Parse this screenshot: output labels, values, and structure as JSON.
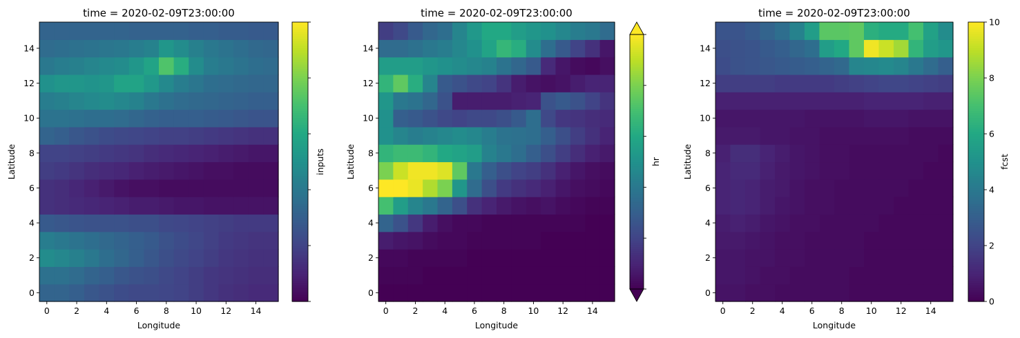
{
  "chart_data": [
    {
      "type": "heatmap",
      "title": "time = 2020-02-09T23:00:00",
      "xlabel": "Longitude",
      "ylabel": "Latitude",
      "colorbar_label": "inputs",
      "colormap": "viridis",
      "xlim": [
        -0.5,
        15.5
      ],
      "ylim": [
        -0.5,
        15.5
      ],
      "x_ticks": [
        0,
        2,
        4,
        6,
        8,
        10,
        12,
        14
      ],
      "y_ticks": [
        0,
        2,
        4,
        6,
        8,
        10,
        12,
        14
      ],
      "colorbar_range": [
        0,
        1
      ],
      "colorbar_ticks": [
        0,
        0.2,
        0.4,
        0.6,
        0.8,
        1.0
      ],
      "colorbar_tick_labels": [
        "",
        "",
        "",
        "",
        "",
        ""
      ],
      "colorbar_extend": "neither",
      "values": [
        [
          0.32,
          0.32,
          0.3,
          0.27,
          0.25,
          0.23,
          0.22,
          0.22,
          0.21,
          0.2,
          0.18,
          0.16,
          0.14,
          0.13,
          0.12,
          0.12
        ],
        [
          0.37,
          0.37,
          0.35,
          0.32,
          0.3,
          0.27,
          0.25,
          0.24,
          0.22,
          0.2,
          0.18,
          0.16,
          0.15,
          0.14,
          0.13,
          0.13
        ],
        [
          0.48,
          0.46,
          0.43,
          0.4,
          0.36,
          0.33,
          0.3,
          0.27,
          0.24,
          0.22,
          0.2,
          0.18,
          0.16,
          0.15,
          0.14,
          0.14
        ],
        [
          0.42,
          0.4,
          0.38,
          0.36,
          0.34,
          0.32,
          0.3,
          0.28,
          0.25,
          0.23,
          0.21,
          0.19,
          0.17,
          0.16,
          0.15,
          0.15
        ],
        [
          0.28,
          0.27,
          0.26,
          0.25,
          0.25,
          0.25,
          0.24,
          0.24,
          0.22,
          0.21,
          0.2,
          0.19,
          0.18,
          0.17,
          0.17,
          0.17
        ],
        [
          0.14,
          0.13,
          0.12,
          0.11,
          0.1,
          0.09,
          0.08,
          0.08,
          0.07,
          0.06,
          0.06,
          0.05,
          0.05,
          0.05,
          0.05,
          0.05
        ],
        [
          0.14,
          0.13,
          0.11,
          0.09,
          0.07,
          0.05,
          0.04,
          0.04,
          0.03,
          0.03,
          0.03,
          0.03,
          0.03,
          0.03,
          0.03,
          0.03
        ],
        [
          0.18,
          0.17,
          0.15,
          0.13,
          0.12,
          0.11,
          0.09,
          0.08,
          0.07,
          0.06,
          0.05,
          0.04,
          0.04,
          0.03,
          0.03,
          0.03
        ],
        [
          0.2,
          0.2,
          0.19,
          0.18,
          0.17,
          0.16,
          0.15,
          0.13,
          0.12,
          0.11,
          0.1,
          0.09,
          0.08,
          0.07,
          0.06,
          0.06
        ],
        [
          0.32,
          0.3,
          0.27,
          0.25,
          0.23,
          0.22,
          0.21,
          0.2,
          0.19,
          0.19,
          0.18,
          0.17,
          0.16,
          0.15,
          0.14,
          0.14
        ],
        [
          0.38,
          0.38,
          0.37,
          0.36,
          0.36,
          0.35,
          0.33,
          0.31,
          0.3,
          0.3,
          0.3,
          0.29,
          0.28,
          0.27,
          0.26,
          0.26
        ],
        [
          0.42,
          0.43,
          0.45,
          0.47,
          0.48,
          0.46,
          0.44,
          0.4,
          0.37,
          0.35,
          0.34,
          0.33,
          0.32,
          0.31,
          0.3,
          0.3
        ],
        [
          0.5,
          0.52,
          0.52,
          0.51,
          0.52,
          0.58,
          0.58,
          0.53,
          0.47,
          0.42,
          0.39,
          0.36,
          0.35,
          0.34,
          0.33,
          0.33
        ],
        [
          0.4,
          0.42,
          0.43,
          0.45,
          0.47,
          0.48,
          0.52,
          0.58,
          0.72,
          0.62,
          0.48,
          0.42,
          0.4,
          0.38,
          0.36,
          0.35
        ],
        [
          0.35,
          0.36,
          0.37,
          0.38,
          0.39,
          0.4,
          0.42,
          0.44,
          0.52,
          0.48,
          0.43,
          0.4,
          0.38,
          0.36,
          0.34,
          0.33
        ],
        [
          0.32,
          0.32,
          0.32,
          0.32,
          0.32,
          0.32,
          0.31,
          0.31,
          0.31,
          0.31,
          0.3,
          0.3,
          0.29,
          0.29,
          0.28,
          0.28
        ]
      ]
    },
    {
      "type": "heatmap",
      "title": "time = 2020-02-09T23:00:00",
      "xlabel": "Longitude",
      "ylabel": "Latitude",
      "colorbar_label": "hr",
      "colormap": "viridis",
      "xlim": [
        -0.5,
        15.5
      ],
      "ylim": [
        -0.5,
        15.5
      ],
      "x_ticks": [
        0,
        2,
        4,
        6,
        8,
        10,
        12,
        14
      ],
      "y_ticks": [
        0,
        2,
        4,
        6,
        8,
        10,
        12,
        14
      ],
      "colorbar_range": [
        0,
        1
      ],
      "colorbar_ticks": [
        0,
        0.2,
        0.4,
        0.6,
        0.8,
        1.0
      ],
      "colorbar_tick_labels": [
        "",
        "",
        "",
        "",
        "",
        ""
      ],
      "colorbar_extend": "both",
      "values": [
        [
          0.0,
          0.0,
          0.0,
          0.0,
          0.0,
          0.0,
          0.0,
          0.0,
          0.0,
          0.0,
          0.0,
          0.0,
          0.0,
          0.0,
          0.0,
          0.0
        ],
        [
          0.01,
          0.01,
          0.01,
          0.0,
          0.0,
          0.0,
          0.0,
          0.0,
          0.0,
          0.0,
          0.0,
          0.0,
          0.0,
          0.0,
          0.0,
          0.0
        ],
        [
          0.02,
          0.02,
          0.01,
          0.01,
          0.01,
          0.01,
          0.0,
          0.0,
          0.0,
          0.0,
          0.0,
          0.0,
          0.0,
          0.0,
          0.0,
          0.0
        ],
        [
          0.08,
          0.06,
          0.05,
          0.03,
          0.02,
          0.02,
          0.01,
          0.01,
          0.01,
          0.01,
          0.01,
          0.0,
          0.0,
          0.0,
          0.0,
          0.0
        ],
        [
          0.32,
          0.25,
          0.16,
          0.08,
          0.04,
          0.02,
          0.02,
          0.01,
          0.01,
          0.01,
          0.01,
          0.01,
          0.01,
          0.01,
          0.0,
          0.0
        ],
        [
          0.7,
          0.55,
          0.45,
          0.4,
          0.32,
          0.24,
          0.14,
          0.1,
          0.07,
          0.05,
          0.04,
          0.05,
          0.03,
          0.02,
          0.01,
          0.01
        ],
        [
          1.0,
          1.0,
          0.97,
          0.88,
          0.8,
          0.52,
          0.35,
          0.24,
          0.17,
          0.14,
          0.12,
          0.09,
          0.06,
          0.04,
          0.03,
          0.02
        ],
        [
          0.8,
          0.92,
          0.98,
          0.98,
          0.95,
          0.75,
          0.4,
          0.3,
          0.24,
          0.2,
          0.18,
          0.14,
          0.09,
          0.06,
          0.04,
          0.03
        ],
        [
          0.65,
          0.68,
          0.68,
          0.65,
          0.6,
          0.58,
          0.55,
          0.44,
          0.4,
          0.36,
          0.3,
          0.24,
          0.18,
          0.13,
          0.09,
          0.07
        ],
        [
          0.5,
          0.45,
          0.42,
          0.44,
          0.46,
          0.48,
          0.46,
          0.42,
          0.38,
          0.37,
          0.36,
          0.3,
          0.24,
          0.18,
          0.14,
          0.1
        ],
        [
          0.5,
          0.3,
          0.28,
          0.25,
          0.22,
          0.2,
          0.22,
          0.22,
          0.24,
          0.28,
          0.36,
          0.22,
          0.16,
          0.15,
          0.13,
          0.12
        ],
        [
          0.52,
          0.4,
          0.38,
          0.33,
          0.25,
          0.08,
          0.08,
          0.08,
          0.08,
          0.09,
          0.1,
          0.25,
          0.28,
          0.25,
          0.2,
          0.15
        ],
        [
          0.65,
          0.75,
          0.62,
          0.45,
          0.28,
          0.25,
          0.22,
          0.2,
          0.15,
          0.08,
          0.05,
          0.04,
          0.05,
          0.08,
          0.1,
          0.1
        ],
        [
          0.55,
          0.55,
          0.55,
          0.52,
          0.5,
          0.48,
          0.46,
          0.44,
          0.38,
          0.33,
          0.28,
          0.12,
          0.06,
          0.03,
          0.02,
          0.04
        ],
        [
          0.35,
          0.35,
          0.37,
          0.4,
          0.42,
          0.46,
          0.5,
          0.58,
          0.66,
          0.62,
          0.48,
          0.36,
          0.28,
          0.2,
          0.14,
          0.06
        ],
        [
          0.18,
          0.22,
          0.28,
          0.33,
          0.36,
          0.45,
          0.53,
          0.6,
          0.6,
          0.55,
          0.52,
          0.5,
          0.46,
          0.42,
          0.4,
          0.35
        ]
      ]
    },
    {
      "type": "heatmap",
      "title": "time = 2020-02-09T23:00:00",
      "xlabel": "Longitude",
      "ylabel": "Latitude",
      "colorbar_label": "fcst",
      "colormap": "viridis",
      "xlim": [
        -0.5,
        15.5
      ],
      "ylim": [
        -0.5,
        15.5
      ],
      "x_ticks": [
        0,
        2,
        4,
        6,
        8,
        10,
        12,
        14
      ],
      "y_ticks": [
        0,
        2,
        4,
        6,
        8,
        10,
        12,
        14
      ],
      "colorbar_range": [
        0,
        10
      ],
      "colorbar_ticks": [
        0,
        2,
        4,
        6,
        8,
        10
      ],
      "colorbar_tick_labels": [
        "0",
        "2",
        "4",
        "6",
        "8",
        "10"
      ],
      "colorbar_extend": "neither",
      "values": [
        [
          0.5,
          0.5,
          0.4,
          0.4,
          0.3,
          0.3,
          0.3,
          0.3,
          0.3,
          0.2,
          0.2,
          0.2,
          0.2,
          0.2,
          0.2,
          0.2
        ],
        [
          0.6,
          0.6,
          0.5,
          0.4,
          0.4,
          0.3,
          0.3,
          0.3,
          0.3,
          0.2,
          0.2,
          0.2,
          0.2,
          0.2,
          0.2,
          0.2
        ],
        [
          0.6,
          0.6,
          0.5,
          0.5,
          0.4,
          0.4,
          0.3,
          0.3,
          0.3,
          0.3,
          0.2,
          0.2,
          0.2,
          0.2,
          0.2,
          0.2
        ],
        [
          0.7,
          0.7,
          0.6,
          0.5,
          0.4,
          0.4,
          0.3,
          0.3,
          0.3,
          0.3,
          0.2,
          0.2,
          0.2,
          0.2,
          0.2,
          0.2
        ],
        [
          0.8,
          0.9,
          0.8,
          0.6,
          0.5,
          0.4,
          0.4,
          0.3,
          0.3,
          0.3,
          0.3,
          0.2,
          0.2,
          0.2,
          0.2,
          0.2
        ],
        [
          1.0,
          1.1,
          1.0,
          0.8,
          0.6,
          0.5,
          0.4,
          0.4,
          0.3,
          0.3,
          0.3,
          0.3,
          0.2,
          0.2,
          0.2,
          0.2
        ],
        [
          1.0,
          1.1,
          1.0,
          0.8,
          0.7,
          0.5,
          0.4,
          0.4,
          0.3,
          0.3,
          0.3,
          0.3,
          0.3,
          0.2,
          0.2,
          0.2
        ],
        [
          1.0,
          1.2,
          1.2,
          0.9,
          0.7,
          0.6,
          0.5,
          0.4,
          0.4,
          0.3,
          0.3,
          0.3,
          0.3,
          0.3,
          0.2,
          0.2
        ],
        [
          0.9,
          1.3,
          1.3,
          1.0,
          0.8,
          0.6,
          0.5,
          0.4,
          0.4,
          0.3,
          0.3,
          0.3,
          0.3,
          0.3,
          0.3,
          0.2
        ],
        [
          0.7,
          0.7,
          0.7,
          0.6,
          0.6,
          0.5,
          0.5,
          0.4,
          0.4,
          0.4,
          0.4,
          0.4,
          0.4,
          0.3,
          0.3,
          0.3
        ],
        [
          0.6,
          0.6,
          0.6,
          0.6,
          0.6,
          0.6,
          0.5,
          0.5,
          0.5,
          0.5,
          0.6,
          0.6,
          0.6,
          0.5,
          0.5,
          0.5
        ],
        [
          0.9,
          0.9,
          0.9,
          0.9,
          0.9,
          0.9,
          0.9,
          0.9,
          0.9,
          0.9,
          1.0,
          1.0,
          1.0,
          1.0,
          0.9,
          0.9
        ],
        [
          1.8,
          1.8,
          1.8,
          1.8,
          1.7,
          1.7,
          1.7,
          1.7,
          1.8,
          1.9,
          2.0,
          2.1,
          2.1,
          2.0,
          1.9,
          1.8
        ],
        [
          2.3,
          2.5,
          2.6,
          2.7,
          2.8,
          2.9,
          3.0,
          3.2,
          3.4,
          4.5,
          4.6,
          4.7,
          4.5,
          4.0,
          3.5,
          3.0
        ],
        [
          2.4,
          2.5,
          2.6,
          2.8,
          3.0,
          3.3,
          3.6,
          5.5,
          6.0,
          7.5,
          9.8,
          9.2,
          8.6,
          6.5,
          5.5,
          5.2
        ],
        [
          2.6,
          2.6,
          2.8,
          3.2,
          3.6,
          4.4,
          5.5,
          7.4,
          7.4,
          7.5,
          6.3,
          6.1,
          6.1,
          7.0,
          5.7,
          4.8
        ]
      ]
    }
  ]
}
